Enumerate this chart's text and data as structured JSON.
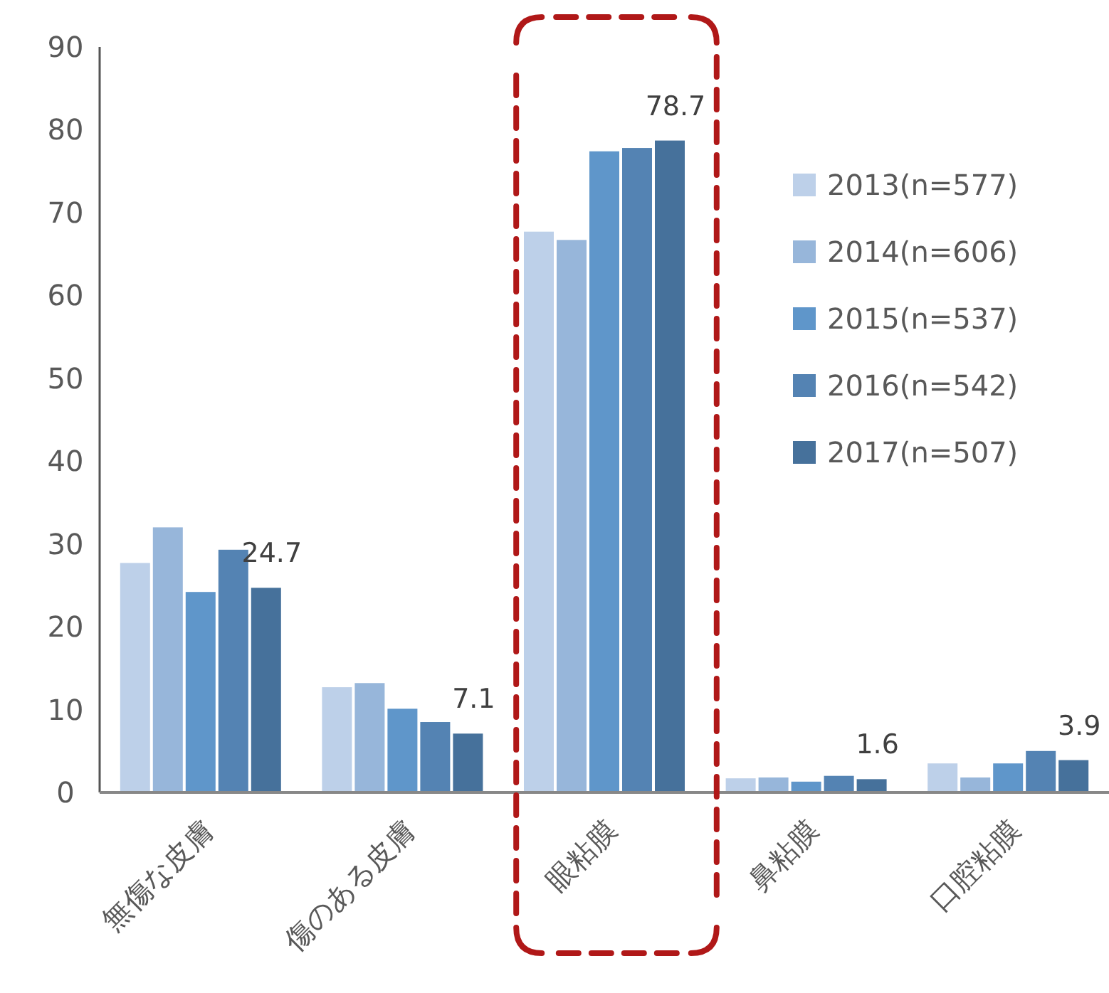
{
  "chart_data": {
    "type": "bar",
    "categories": [
      "無傷な皮膚",
      "傷のある皮膚",
      "眼粘膜",
      "鼻粘膜",
      "口腔粘膜"
    ],
    "series": [
      {
        "name": "2013(n=577)",
        "color": "#bdd0e9",
        "values": [
          27.7,
          12.7,
          67.7,
          1.7,
          3.5
        ]
      },
      {
        "name": "2014(n=606)",
        "color": "#97b6da",
        "values": [
          32.0,
          13.2,
          66.7,
          1.8,
          1.8
        ]
      },
      {
        "name": "2015(n=537)",
        "color": "#5f96ca",
        "values": [
          24.2,
          10.1,
          77.4,
          1.3,
          3.5
        ]
      },
      {
        "name": "2016(n=542)",
        "color": "#5483b3",
        "values": [
          29.3,
          8.5,
          77.8,
          2.0,
          5.0
        ]
      },
      {
        "name": "2017(n=507)",
        "color": "#46719b",
        "values": [
          24.7,
          7.1,
          78.7,
          1.6,
          3.9
        ],
        "value_labels": [
          "24.7",
          "7.1",
          "78.7",
          "1.6",
          "3.9"
        ]
      }
    ],
    "ylim": [
      0,
      90
    ],
    "yticks": [
      0,
      10,
      20,
      30,
      40,
      50,
      60,
      70,
      80,
      90
    ],
    "grid": false,
    "legend": "right"
  }
}
